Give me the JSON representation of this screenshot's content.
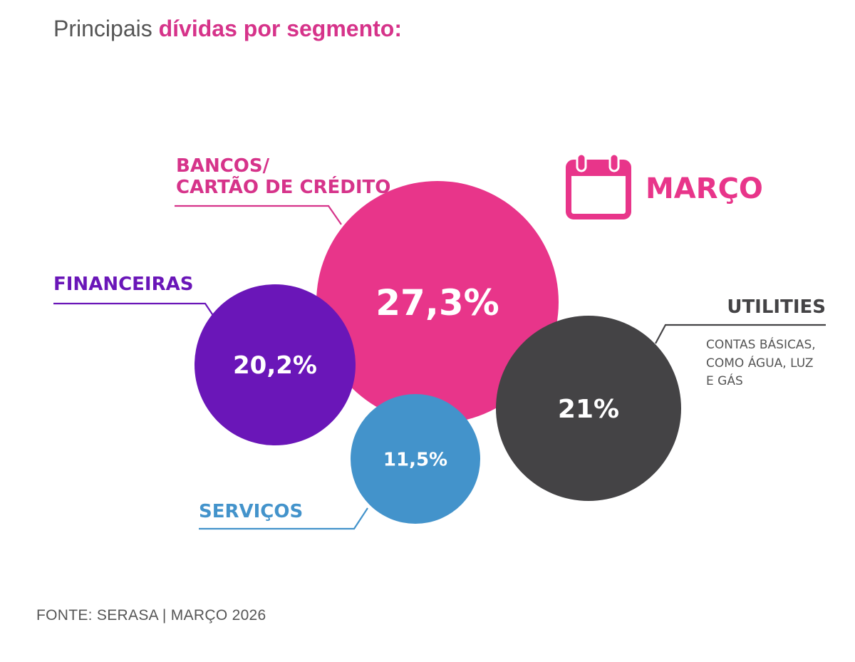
{
  "title": {
    "prefix": "Principais",
    "highlight": "dívidas por segmento:"
  },
  "month": {
    "label": "MARÇO",
    "icon": "calendar-icon"
  },
  "source": "FONTE: SERASA | MARÇO 2026",
  "colors": {
    "pink": "#e8358a",
    "purple": "#6a16b8",
    "blue": "#4393cb",
    "gray": "#444345",
    "text_gray": "#555555",
    "title_pink": "#d6338a"
  },
  "chart_data": {
    "type": "bubble",
    "series": [
      {
        "segment": "BANCOS/ CARTÃO DE CRÉDITO",
        "label_lines": [
          "BANCOS/",
          "CARTÃO DE CRÉDITO"
        ],
        "value": 27.3,
        "value_label": "27,3%",
        "color": "#e8358a"
      },
      {
        "segment": "FINANCEIRAS",
        "label_lines": [
          "FINANCEIRAS"
        ],
        "value": 20.2,
        "value_label": "20,2%",
        "color": "#6a16b8"
      },
      {
        "segment": "UTILITIES",
        "label_lines": [
          "UTILITIES"
        ],
        "sublabel_lines": [
          "CONTAS BÁSICAS,",
          "COMO  ÁGUA, LUZ",
          "E GÁS"
        ],
        "value": 21,
        "value_label": "21%",
        "color": "#444345"
      },
      {
        "segment": "SERVIÇOS",
        "label_lines": [
          "SERVIÇOS"
        ],
        "value": 11.5,
        "value_label": "11,5%",
        "color": "#4393cb"
      }
    ]
  }
}
